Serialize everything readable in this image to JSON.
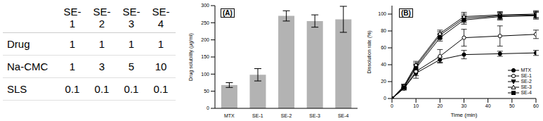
{
  "table": {
    "columns": [
      "SE-1",
      "SE-2",
      "SE-3",
      "SE-4"
    ],
    "rows": [
      {
        "label": "Drug",
        "values": [
          1,
          1,
          1,
          1
        ]
      },
      {
        "label": "Na-CMC",
        "values": [
          1,
          3,
          5,
          10
        ]
      },
      {
        "label": "SLS",
        "values": [
          0.1,
          0.1,
          0.1,
          0.1
        ]
      }
    ]
  },
  "chart_data": [
    {
      "type": "bar",
      "title": "(A)",
      "y_label": "Drug solubility (μg/ml)",
      "categories": [
        "MTX",
        "SE-1",
        "SE-2",
        "SE-3",
        "SE-4"
      ],
      "values": [
        68,
        98,
        270,
        255,
        260
      ],
      "errors": [
        7,
        18,
        15,
        18,
        38
      ],
      "color": "#b3b3b3",
      "ylim": [
        0,
        300
      ],
      "yticks": [
        0,
        50,
        100,
        150,
        200,
        250,
        300
      ]
    },
    {
      "type": "line",
      "title": "(B)",
      "x_label": "Time (min)",
      "y_label": "Dissolution rate (%)",
      "x": [
        0,
        5,
        10,
        20,
        30,
        45,
        60
      ],
      "series": [
        {
          "name": "MTX",
          "color": "#000000",
          "marker": "circle",
          "values": [
            0,
            12,
            30,
            46,
            52,
            53,
            54
          ],
          "errors": [
            0,
            1,
            3,
            3,
            5,
            3,
            3
          ]
        },
        {
          "name": "SE-1",
          "color": "#000000",
          "marker": "open_circle",
          "values": [
            0,
            12,
            32,
            50,
            72,
            74,
            76
          ],
          "errors": [
            0,
            2,
            8,
            8,
            10,
            12,
            5
          ]
        },
        {
          "name": "SE-2",
          "color": "#000000",
          "marker": "triangle_down",
          "values": [
            0,
            14,
            38,
            75,
            95,
            98,
            99
          ],
          "errors": [
            0,
            2,
            4,
            4,
            5,
            4,
            4
          ]
        },
        {
          "name": "SE-3",
          "color": "#000000",
          "marker": "open_triangle",
          "values": [
            0,
            15,
            40,
            77,
            97,
            99,
            100
          ],
          "errors": [
            0,
            2,
            4,
            4,
            5,
            4,
            4
          ]
        },
        {
          "name": "SE-4",
          "color": "#000000",
          "marker": "square",
          "values": [
            0,
            13,
            36,
            72,
            93,
            97,
            98
          ],
          "errors": [
            0,
            2,
            4,
            4,
            5,
            4,
            4
          ]
        }
      ],
      "xlim": [
        0,
        60
      ],
      "xticks": [
        0,
        10,
        20,
        30,
        40,
        50,
        60
      ],
      "ylim": [
        0,
        110
      ],
      "yticks": [
        0,
        20,
        40,
        60,
        80,
        100
      ],
      "legend": "lower right"
    }
  ]
}
